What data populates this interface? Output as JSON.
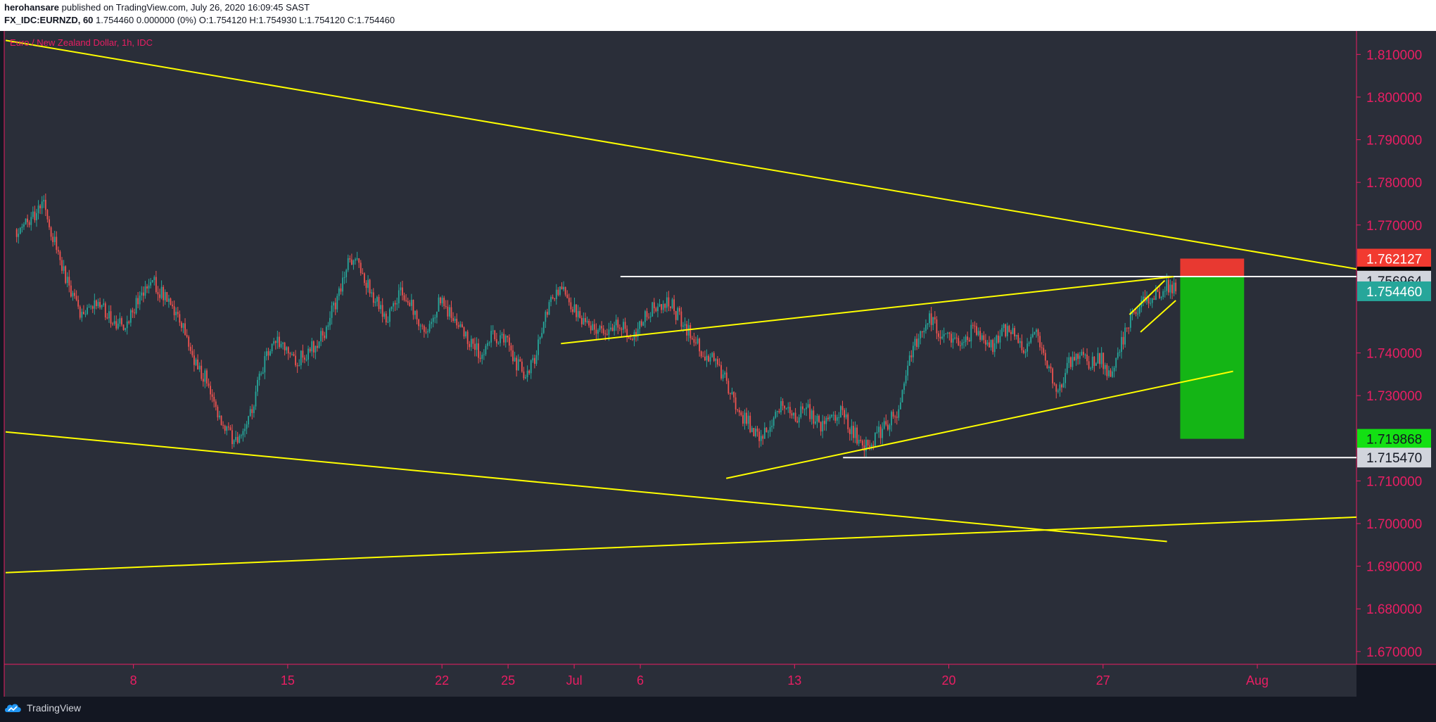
{
  "header": {
    "publisher": "herohansare",
    "published_text": "published on TradingView.com, July 26, 2020 16:09:45 SAST",
    "symbol": "FX_IDC:EURNZD, 60",
    "quote_text": "1.754460 0.000000 (0%) O:1.754120 H:1.754930 L:1.754120 C:1.754460"
  },
  "chart_title": "Euro / New Zealand Dollar, 1h, IDC",
  "brand": {
    "name": "TradingView"
  },
  "colors": {
    "background": "#2a2e39",
    "frame": "#131722",
    "axis_text": "#e91e63",
    "candle_up": "#26a69a",
    "candle_down": "#ef5350",
    "trendline": "#ffff00",
    "level_line": "#ffffff",
    "stop_zone": "#f23a30",
    "target_zone": "#13bd13"
  },
  "chart_data": {
    "type": "candlestick",
    "title": "Euro / New Zealand Dollar, 1h, IDC",
    "ylim": [
      1.667,
      1.8155
    ],
    "x_ticks": [
      "8",
      "15",
      "22",
      "25",
      "Jul",
      "6",
      "13",
      "20",
      "27",
      "Aug"
    ],
    "y_ticks": [
      "1.810000",
      "1.800000",
      "1.790000",
      "1.780000",
      "1.770000",
      "1.740000",
      "1.730000",
      "1.710000",
      "1.700000",
      "1.690000",
      "1.680000",
      "1.670000"
    ],
    "price_markers": [
      {
        "label": "1.762127",
        "value": 1.762127,
        "bg": "#f23a30",
        "fg": "#ffffff"
      },
      {
        "label": "1.757920",
        "value": 1.75792,
        "bg": "#000000",
        "fg": "#ffffff"
      },
      {
        "label": "1.756964",
        "value": 1.756964,
        "bg": "#d1d4dc",
        "fg": "#131722"
      },
      {
        "label": "1.754460",
        "value": 1.75446,
        "bg": "#26a69a",
        "fg": "#ffffff"
      },
      {
        "label": "1.719868",
        "value": 1.719868,
        "bg": "#13e013",
        "fg": "#131722"
      },
      {
        "label": "1.715470",
        "value": 1.71547,
        "bg": "#d1d4dc",
        "fg": "#131722"
      }
    ],
    "price_path": [
      [
        0,
        1.769
      ],
      [
        0.8,
        1.772
      ],
      [
        1.2,
        1.776
      ],
      [
        1.6,
        1.768
      ],
      [
        2.2,
        1.758
      ],
      [
        3,
        1.748
      ],
      [
        3.7,
        1.752
      ],
      [
        4.3,
        1.748
      ],
      [
        4.8,
        1.746
      ],
      [
        5.4,
        1.751
      ],
      [
        6.1,
        1.758
      ],
      [
        6.8,
        1.752
      ],
      [
        7.5,
        1.746
      ],
      [
        8.1,
        1.738
      ],
      [
        8.8,
        1.732
      ],
      [
        9.4,
        1.722
      ],
      [
        10,
        1.719
      ],
      [
        10.6,
        1.726
      ],
      [
        11.2,
        1.737
      ],
      [
        11.8,
        1.744
      ],
      [
        12.6,
        1.738
      ],
      [
        13.2,
        1.74
      ],
      [
        14,
        1.745
      ],
      [
        14.6,
        1.754
      ],
      [
        15.1,
        1.762
      ],
      [
        15.6,
        1.76
      ],
      [
        16.2,
        1.753
      ],
      [
        16.8,
        1.747
      ],
      [
        17.4,
        1.755
      ],
      [
        18,
        1.75
      ],
      [
        18.6,
        1.745
      ],
      [
        19.2,
        1.752
      ],
      [
        19.8,
        1.748
      ],
      [
        20.4,
        1.744
      ],
      [
        21,
        1.74
      ],
      [
        21.6,
        1.744
      ],
      [
        22.2,
        1.743
      ],
      [
        22.6,
        1.738
      ],
      [
        23.1,
        1.735
      ],
      [
        23.6,
        1.74
      ],
      [
        24.1,
        1.75
      ],
      [
        24.7,
        1.756
      ],
      [
        25.1,
        1.752
      ],
      [
        25.6,
        1.748
      ],
      [
        26.2,
        1.746
      ],
      [
        26.8,
        1.744
      ],
      [
        27.4,
        1.747
      ],
      [
        28,
        1.744
      ],
      [
        28.6,
        1.749
      ],
      [
        29,
        1.751
      ],
      [
        29.6,
        1.752
      ],
      [
        30.1,
        1.748
      ],
      [
        30.6,
        1.744
      ],
      [
        31.2,
        1.74
      ],
      [
        31.7,
        1.738
      ],
      [
        32.2,
        1.733
      ],
      [
        32.8,
        1.726
      ],
      [
        33.3,
        1.723
      ],
      [
        33.8,
        1.72
      ],
      [
        34.3,
        1.724
      ],
      [
        34.8,
        1.729
      ],
      [
        35.3,
        1.725
      ],
      [
        35.8,
        1.727
      ],
      [
        36.4,
        1.723
      ],
      [
        36.9,
        1.725
      ],
      [
        37.4,
        1.726
      ],
      [
        37.9,
        1.722
      ],
      [
        38.4,
        1.718
      ],
      [
        38.9,
        1.72
      ],
      [
        39.4,
        1.723
      ],
      [
        40,
        1.726
      ],
      [
        40.5,
        1.738
      ],
      [
        41,
        1.745
      ],
      [
        41.4,
        1.748
      ],
      [
        41.9,
        1.745
      ],
      [
        42.4,
        1.743
      ],
      [
        42.9,
        1.741
      ],
      [
        43.3,
        1.745
      ],
      [
        43.8,
        1.744
      ],
      [
        44.3,
        1.742
      ],
      [
        44.8,
        1.746
      ],
      [
        45.3,
        1.744
      ],
      [
        45.8,
        1.741
      ],
      [
        46.3,
        1.744
      ],
      [
        46.8,
        1.737
      ],
      [
        47.2,
        1.73
      ],
      [
        47.7,
        1.737
      ],
      [
        48.2,
        1.739
      ],
      [
        48.7,
        1.737
      ],
      [
        49.2,
        1.739
      ],
      [
        49.6,
        1.735
      ],
      [
        50,
        1.74
      ],
      [
        50.5,
        1.748
      ],
      [
        50.9,
        1.751
      ],
      [
        51.4,
        1.752
      ],
      [
        51.8,
        1.754
      ],
      [
        52.2,
        1.756
      ],
      [
        52.6,
        1.7545
      ]
    ],
    "drawings": {
      "trendlines": [
        {
          "from": [
            -0.5,
            1.8133
          ],
          "to": [
            60.8,
            1.7597
          ]
        },
        {
          "from": [
            -0.5,
            1.7215
          ],
          "to": [
            52.2,
            1.6958
          ]
        },
        {
          "from": [
            -0.5,
            1.6885
          ],
          "to": [
            60.8,
            1.7015
          ]
        },
        {
          "from": [
            24.7,
            1.7422
          ],
          "to": [
            52.5,
            1.7579
          ]
        },
        {
          "from": [
            32.2,
            1.7106
          ],
          "to": [
            55.2,
            1.7357
          ]
        },
        {
          "from": [
            50.5,
            1.749
          ],
          "to": [
            52.1,
            1.757
          ]
        },
        {
          "from": [
            51,
            1.7449
          ],
          "to": [
            52.6,
            1.7523
          ]
        }
      ],
      "horizontal_levels": [
        {
          "value": 1.75792,
          "x_from": 27.4,
          "x_to": 60.8
        },
        {
          "value": 1.71547,
          "x_from": 37.5,
          "x_to": 60.8
        }
      ],
      "position_tool": {
        "side": "short",
        "entry": 1.75792,
        "stop": 1.762127,
        "target": 1.719868,
        "x_from": 52.8,
        "x_to": 55.7
      }
    }
  }
}
